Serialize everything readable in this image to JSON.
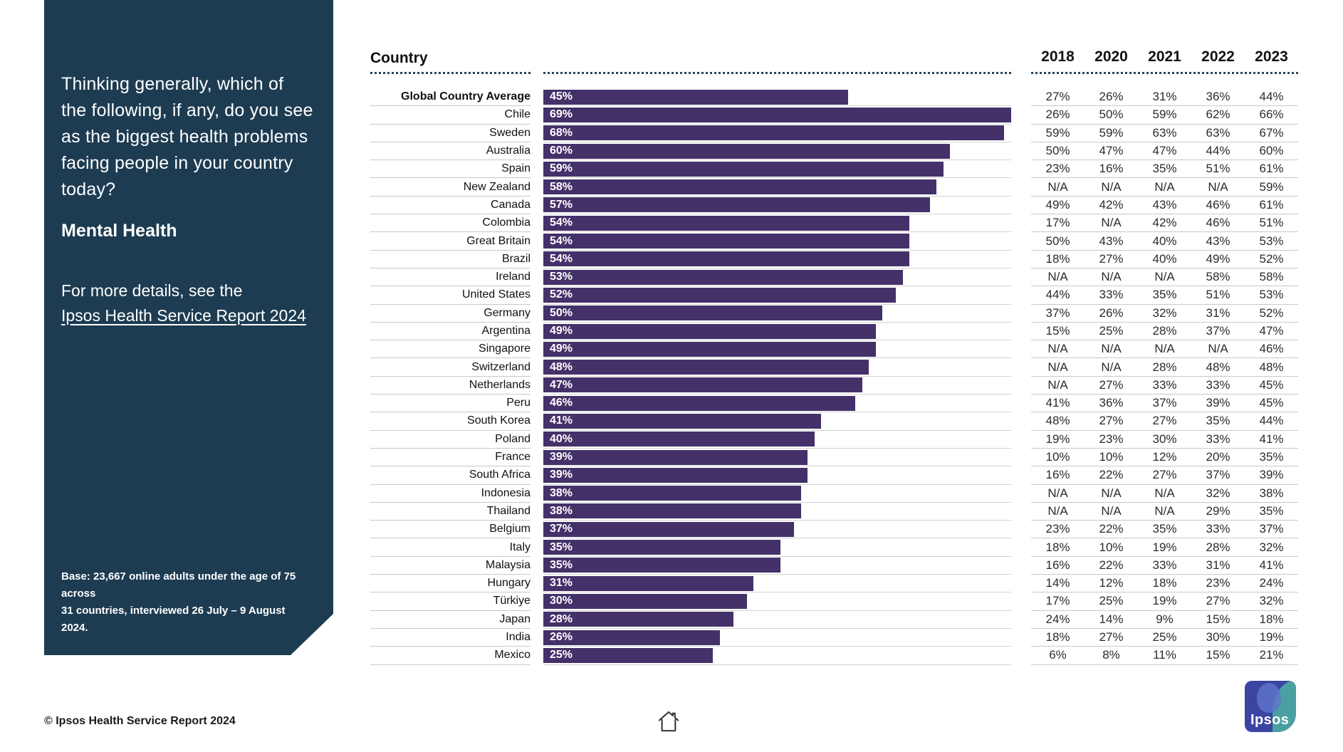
{
  "sidebar": {
    "question": "Thinking generally, which of the following, if any, do you see as the biggest health problems facing people in your country today?",
    "topic": "Mental Health",
    "details_prefix": "For more details, see the",
    "details_link": "Ipsos Health Service Report 2024",
    "base_line1": "Base: 23,667 online adults under the age of 75 across",
    "base_line2": "31 countries, interviewed 26 July – 9 August 2024.",
    "bg_color": "#1d3c52"
  },
  "footer": {
    "copyright": "© Ipsos Health Service Report 2024"
  },
  "logo": {
    "word": "Ipsos",
    "blue": "#3a45a1",
    "teal": "#4aa0a0"
  },
  "chart_data": {
    "type": "bar",
    "orientation": "horizontal",
    "label_column_header": "Country",
    "bar_color": "#443169",
    "scale_max": 69,
    "year_columns": [
      "2018",
      "2020",
      "2021",
      "2022",
      "2023"
    ],
    "rows": [
      {
        "country": "Global Country Average",
        "bold": true,
        "value": 45,
        "value_label": "45%",
        "years": [
          "27%",
          "26%",
          "31%",
          "36%",
          "44%"
        ]
      },
      {
        "country": "Chile",
        "bold": false,
        "value": 69,
        "value_label": "69%",
        "years": [
          "26%",
          "50%",
          "59%",
          "62%",
          "66%"
        ]
      },
      {
        "country": "Sweden",
        "bold": false,
        "value": 68,
        "value_label": "68%",
        "years": [
          "59%",
          "59%",
          "63%",
          "63%",
          "67%"
        ]
      },
      {
        "country": "Australia",
        "bold": false,
        "value": 60,
        "value_label": "60%",
        "years": [
          "50%",
          "47%",
          "47%",
          "44%",
          "60%"
        ]
      },
      {
        "country": "Spain",
        "bold": false,
        "value": 59,
        "value_label": "59%",
        "years": [
          "23%",
          "16%",
          "35%",
          "51%",
          "61%"
        ]
      },
      {
        "country": "New Zealand",
        "bold": false,
        "value": 58,
        "value_label": "58%",
        "years": [
          "N/A",
          "N/A",
          "N/A",
          "N/A",
          "59%"
        ]
      },
      {
        "country": "Canada",
        "bold": false,
        "value": 57,
        "value_label": "57%",
        "years": [
          "49%",
          "42%",
          "43%",
          "46%",
          "61%"
        ]
      },
      {
        "country": "Colombia",
        "bold": false,
        "value": 54,
        "value_label": "54%",
        "years": [
          "17%",
          "N/A",
          "42%",
          "46%",
          "51%"
        ]
      },
      {
        "country": "Great Britain",
        "bold": false,
        "value": 54,
        "value_label": "54%",
        "years": [
          "50%",
          "43%",
          "40%",
          "43%",
          "53%"
        ]
      },
      {
        "country": "Brazil",
        "bold": false,
        "value": 54,
        "value_label": "54%",
        "years": [
          "18%",
          "27%",
          "40%",
          "49%",
          "52%"
        ]
      },
      {
        "country": "Ireland",
        "bold": false,
        "value": 53,
        "value_label": "53%",
        "years": [
          "N/A",
          "N/A",
          "N/A",
          "58%",
          "58%"
        ]
      },
      {
        "country": "United States",
        "bold": false,
        "value": 52,
        "value_label": "52%",
        "years": [
          "44%",
          "33%",
          "35%",
          "51%",
          "53%"
        ]
      },
      {
        "country": "Germany",
        "bold": false,
        "value": 50,
        "value_label": "50%",
        "years": [
          "37%",
          "26%",
          "32%",
          "31%",
          "52%"
        ]
      },
      {
        "country": "Argentina",
        "bold": false,
        "value": 49,
        "value_label": "49%",
        "years": [
          "15%",
          "25%",
          "28%",
          "37%",
          "47%"
        ]
      },
      {
        "country": "Singapore",
        "bold": false,
        "value": 49,
        "value_label": "49%",
        "years": [
          "N/A",
          "N/A",
          "N/A",
          "N/A",
          "46%"
        ]
      },
      {
        "country": "Switzerland",
        "bold": false,
        "value": 48,
        "value_label": "48%",
        "years": [
          "N/A",
          "N/A",
          "28%",
          "48%",
          "48%"
        ]
      },
      {
        "country": "Netherlands",
        "bold": false,
        "value": 47,
        "value_label": "47%",
        "years": [
          "N/A",
          "27%",
          "33%",
          "33%",
          "45%"
        ]
      },
      {
        "country": "Peru",
        "bold": false,
        "value": 46,
        "value_label": "46%",
        "years": [
          "41%",
          "36%",
          "37%",
          "39%",
          "45%"
        ]
      },
      {
        "country": "South Korea",
        "bold": false,
        "value": 41,
        "value_label": "41%",
        "years": [
          "48%",
          "27%",
          "27%",
          "35%",
          "44%"
        ]
      },
      {
        "country": "Poland",
        "bold": false,
        "value": 40,
        "value_label": "40%",
        "years": [
          "19%",
          "23%",
          "30%",
          "33%",
          "41%"
        ]
      },
      {
        "country": "France",
        "bold": false,
        "value": 39,
        "value_label": "39%",
        "years": [
          "10%",
          "10%",
          "12%",
          "20%",
          "35%"
        ]
      },
      {
        "country": "South Africa",
        "bold": false,
        "value": 39,
        "value_label": "39%",
        "years": [
          "16%",
          "22%",
          "27%",
          "37%",
          "39%"
        ]
      },
      {
        "country": "Indonesia",
        "bold": false,
        "value": 38,
        "value_label": "38%",
        "years": [
          "N/A",
          "N/A",
          "N/A",
          "32%",
          "38%"
        ]
      },
      {
        "country": "Thailand",
        "bold": false,
        "value": 38,
        "value_label": "38%",
        "years": [
          "N/A",
          "N/A",
          "N/A",
          "29%",
          "35%"
        ]
      },
      {
        "country": "Belgium",
        "bold": false,
        "value": 37,
        "value_label": "37%",
        "years": [
          "23%",
          "22%",
          "35%",
          "33%",
          "37%"
        ]
      },
      {
        "country": "Italy",
        "bold": false,
        "value": 35,
        "value_label": "35%",
        "years": [
          "18%",
          "10%",
          "19%",
          "28%",
          "32%"
        ]
      },
      {
        "country": "Malaysia",
        "bold": false,
        "value": 35,
        "value_label": "35%",
        "years": [
          "16%",
          "22%",
          "33%",
          "31%",
          "41%"
        ]
      },
      {
        "country": "Hungary",
        "bold": false,
        "value": 31,
        "value_label": "31%",
        "years": [
          "14%",
          "12%",
          "18%",
          "23%",
          "24%"
        ]
      },
      {
        "country": "Türkiye",
        "bold": false,
        "value": 30,
        "value_label": "30%",
        "years": [
          "17%",
          "25%",
          "19%",
          "27%",
          "32%"
        ]
      },
      {
        "country": "Japan",
        "bold": false,
        "value": 28,
        "value_label": "28%",
        "years": [
          "24%",
          "14%",
          "9%",
          "15%",
          "18%"
        ]
      },
      {
        "country": "India",
        "bold": false,
        "value": 26,
        "value_label": "26%",
        "years": [
          "18%",
          "27%",
          "25%",
          "30%",
          "19%"
        ]
      },
      {
        "country": "Mexico",
        "bold": false,
        "value": 25,
        "value_label": "25%",
        "years": [
          "6%",
          "8%",
          "11%",
          "15%",
          "21%"
        ]
      }
    ]
  }
}
